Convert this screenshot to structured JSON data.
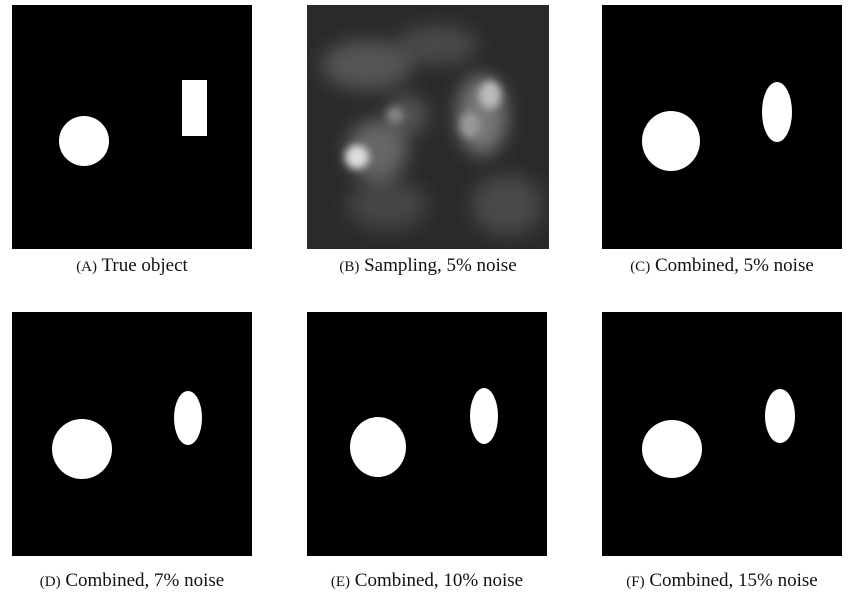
{
  "figure": {
    "panels": [
      {
        "label": "(A)",
        "caption": "True object"
      },
      {
        "label": "(B)",
        "caption": "Sampling, 5% noise"
      },
      {
        "label": "(C)",
        "caption": "Combined, 5% noise"
      },
      {
        "label": "(D)",
        "caption": "Combined, 7% noise"
      },
      {
        "label": "(E)",
        "caption": "Combined, 10% noise"
      },
      {
        "label": "(F)",
        "caption": "Combined, 15% noise"
      }
    ]
  }
}
